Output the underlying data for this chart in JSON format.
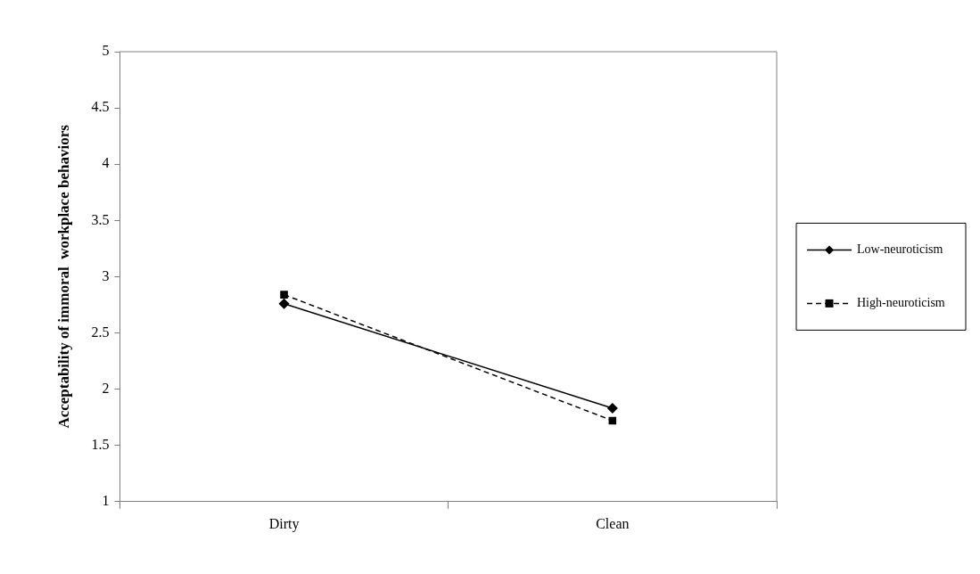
{
  "chart_data": {
    "type": "line",
    "ylabel": "Acceptability of immoral  workplace behaviors",
    "categories": [
      "Dirty",
      "Clean"
    ],
    "series": [
      {
        "name": "Low-neuroticism",
        "color": "#000000",
        "values": [
          2.76,
          1.83
        ],
        "marker": "diamond",
        "line_style": "solid"
      },
      {
        "name": "High-neuroticism",
        "color": "#000000",
        "values": [
          2.84,
          1.72
        ],
        "marker": "square",
        "line_style": "dashed"
      }
    ],
    "ylim": [
      1,
      5
    ],
    "yticks": [
      1,
      1.5,
      2,
      2.5,
      3,
      3.5,
      4,
      4.5,
      5
    ],
    "grid": false,
    "legend": "right"
  }
}
